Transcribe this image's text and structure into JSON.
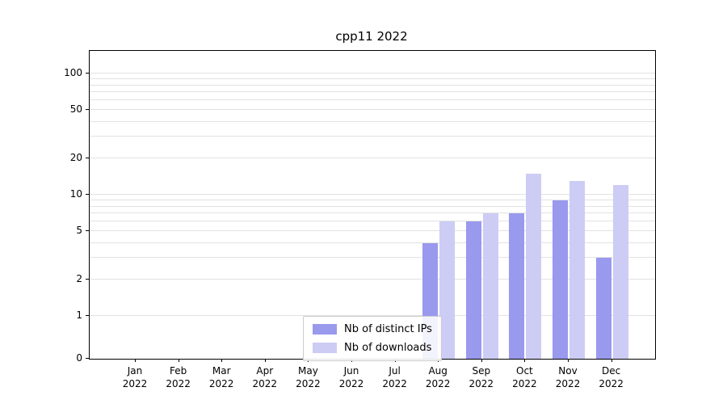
{
  "chart_data": {
    "type": "bar",
    "title": "cpp11 2022",
    "categories": [
      "Jan",
      "Feb",
      "Mar",
      "Apr",
      "May",
      "Jun",
      "Jul",
      "Aug",
      "Sep",
      "Oct",
      "Nov",
      "Dec"
    ],
    "year_label": "2022",
    "series": [
      {
        "name": "Nb of distinct IPs",
        "color": "#9999ee",
        "values": [
          0,
          0,
          0,
          0,
          0,
          0,
          0,
          4,
          6,
          7,
          9,
          3
        ]
      },
      {
        "name": "Nb of downloads",
        "color": "#ccccf5",
        "values": [
          0,
          0,
          0,
          0,
          0,
          0,
          0,
          6,
          7,
          15,
          13,
          12
        ]
      }
    ],
    "y_ticks": [
      0,
      1,
      2,
      5,
      10,
      20,
      50,
      100
    ],
    "yscale": "symlog",
    "ylim": [
      0,
      150
    ],
    "grid": true,
    "legend_position": "lower center"
  }
}
